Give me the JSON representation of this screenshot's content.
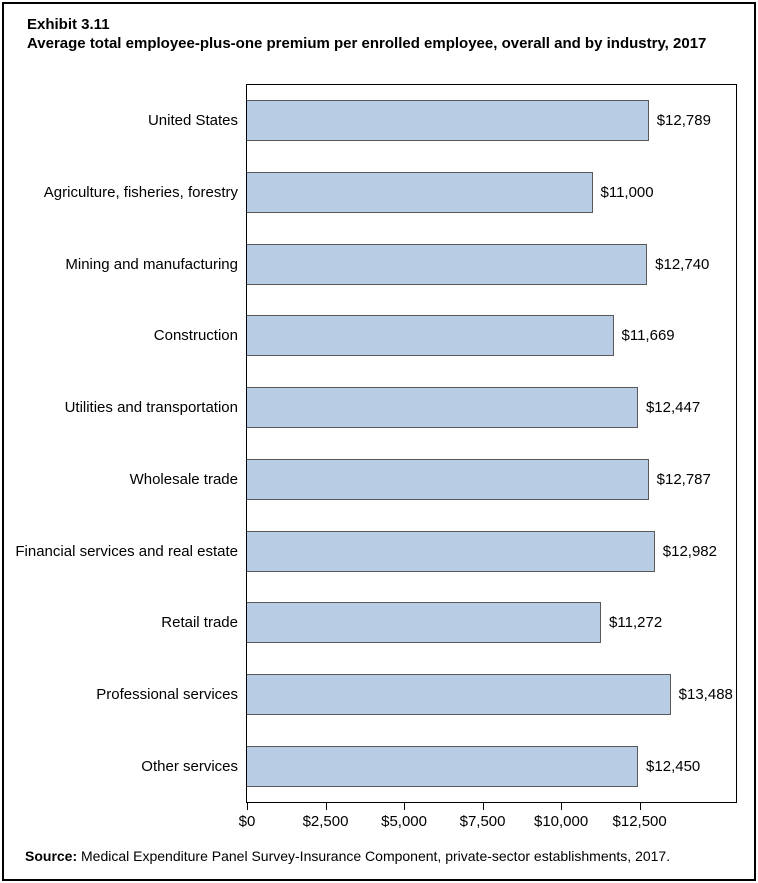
{
  "header": {
    "exhibit_label": "Exhibit 3.11",
    "title": "Average total employee-plus-one premium per enrolled employee, overall and by industry, 2017"
  },
  "chart_data": {
    "type": "bar",
    "orientation": "horizontal",
    "title": "Average total employee-plus-one premium per enrolled employee, overall and by industry, 2017",
    "categories": [
      "United States",
      "Agriculture, fisheries, forestry",
      "Mining and manufacturing",
      "Construction",
      "Utilities and transportation",
      "Wholesale trade",
      "Financial services and real estate",
      "Retail trade",
      "Professional services",
      "Other services"
    ],
    "values": [
      12789,
      11000,
      12740,
      11669,
      12447,
      12787,
      12982,
      11272,
      13488,
      12450
    ],
    "value_labels": [
      "$12,789",
      "$11,000",
      "$12,740",
      "$11,669",
      "$12,447",
      "$12,787",
      "$12,982",
      "$11,272",
      "$13,488",
      "$12,450"
    ],
    "xlabel": "",
    "ylabel": "",
    "xlim": [
      0,
      15600
    ],
    "x_ticks": [
      {
        "value": 0,
        "label": "$0"
      },
      {
        "value": 2500,
        "label": "$2,500"
      },
      {
        "value": 5000,
        "label": "$5,000"
      },
      {
        "value": 7500,
        "label": "$7,500"
      },
      {
        "value": 10000,
        "label": "$10,000"
      },
      {
        "value": 12500,
        "label": "$12,500"
      }
    ],
    "grid": "off",
    "legend": "none",
    "bar_fill": "#b8cce4",
    "bar_border": "#595959"
  },
  "footer": {
    "source_label": "Source:",
    "source_text": " Medical Expenditure Panel Survey-Insurance Component, private-sector establishments, 2017."
  }
}
